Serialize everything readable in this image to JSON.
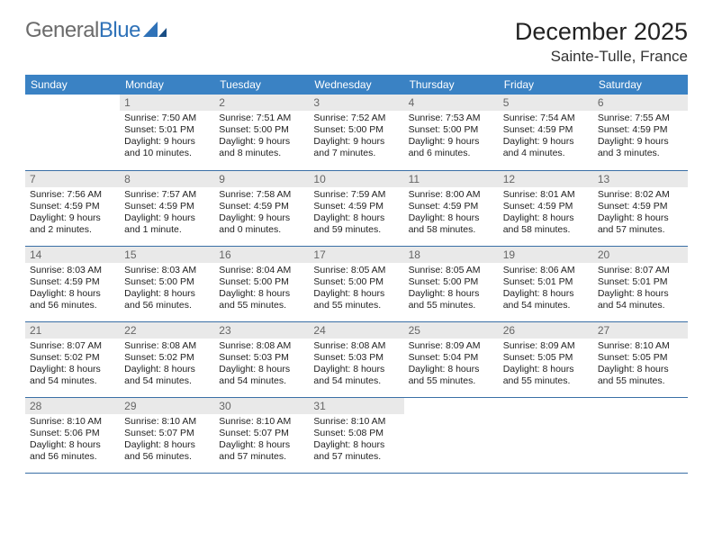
{
  "logo": {
    "text1": "General",
    "text2": "Blue"
  },
  "title": "December 2025",
  "location": "Sainte-Tulle, France",
  "colors": {
    "header_bg": "#3a82c4",
    "header_text": "#ffffff",
    "daynum_bg": "#e9e9e9",
    "daynum_text": "#666666",
    "border": "#3a6fa6",
    "logo_gray": "#6b6b6b",
    "logo_blue": "#2f72b8"
  },
  "weekdays": [
    "Sunday",
    "Monday",
    "Tuesday",
    "Wednesday",
    "Thursday",
    "Friday",
    "Saturday"
  ],
  "start_offset": 1,
  "days": [
    {
      "n": 1,
      "sunrise": "7:50 AM",
      "sunset": "5:01 PM",
      "daylight": "9 hours and 10 minutes."
    },
    {
      "n": 2,
      "sunrise": "7:51 AM",
      "sunset": "5:00 PM",
      "daylight": "9 hours and 8 minutes."
    },
    {
      "n": 3,
      "sunrise": "7:52 AM",
      "sunset": "5:00 PM",
      "daylight": "9 hours and 7 minutes."
    },
    {
      "n": 4,
      "sunrise": "7:53 AM",
      "sunset": "5:00 PM",
      "daylight": "9 hours and 6 minutes."
    },
    {
      "n": 5,
      "sunrise": "7:54 AM",
      "sunset": "4:59 PM",
      "daylight": "9 hours and 4 minutes."
    },
    {
      "n": 6,
      "sunrise": "7:55 AM",
      "sunset": "4:59 PM",
      "daylight": "9 hours and 3 minutes."
    },
    {
      "n": 7,
      "sunrise": "7:56 AM",
      "sunset": "4:59 PM",
      "daylight": "9 hours and 2 minutes."
    },
    {
      "n": 8,
      "sunrise": "7:57 AM",
      "sunset": "4:59 PM",
      "daylight": "9 hours and 1 minute."
    },
    {
      "n": 9,
      "sunrise": "7:58 AM",
      "sunset": "4:59 PM",
      "daylight": "9 hours and 0 minutes."
    },
    {
      "n": 10,
      "sunrise": "7:59 AM",
      "sunset": "4:59 PM",
      "daylight": "8 hours and 59 minutes."
    },
    {
      "n": 11,
      "sunrise": "8:00 AM",
      "sunset": "4:59 PM",
      "daylight": "8 hours and 58 minutes."
    },
    {
      "n": 12,
      "sunrise": "8:01 AM",
      "sunset": "4:59 PM",
      "daylight": "8 hours and 58 minutes."
    },
    {
      "n": 13,
      "sunrise": "8:02 AM",
      "sunset": "4:59 PM",
      "daylight": "8 hours and 57 minutes."
    },
    {
      "n": 14,
      "sunrise": "8:03 AM",
      "sunset": "4:59 PM",
      "daylight": "8 hours and 56 minutes."
    },
    {
      "n": 15,
      "sunrise": "8:03 AM",
      "sunset": "5:00 PM",
      "daylight": "8 hours and 56 minutes."
    },
    {
      "n": 16,
      "sunrise": "8:04 AM",
      "sunset": "5:00 PM",
      "daylight": "8 hours and 55 minutes."
    },
    {
      "n": 17,
      "sunrise": "8:05 AM",
      "sunset": "5:00 PM",
      "daylight": "8 hours and 55 minutes."
    },
    {
      "n": 18,
      "sunrise": "8:05 AM",
      "sunset": "5:00 PM",
      "daylight": "8 hours and 55 minutes."
    },
    {
      "n": 19,
      "sunrise": "8:06 AM",
      "sunset": "5:01 PM",
      "daylight": "8 hours and 54 minutes."
    },
    {
      "n": 20,
      "sunrise": "8:07 AM",
      "sunset": "5:01 PM",
      "daylight": "8 hours and 54 minutes."
    },
    {
      "n": 21,
      "sunrise": "8:07 AM",
      "sunset": "5:02 PM",
      "daylight": "8 hours and 54 minutes."
    },
    {
      "n": 22,
      "sunrise": "8:08 AM",
      "sunset": "5:02 PM",
      "daylight": "8 hours and 54 minutes."
    },
    {
      "n": 23,
      "sunrise": "8:08 AM",
      "sunset": "5:03 PM",
      "daylight": "8 hours and 54 minutes."
    },
    {
      "n": 24,
      "sunrise": "8:08 AM",
      "sunset": "5:03 PM",
      "daylight": "8 hours and 54 minutes."
    },
    {
      "n": 25,
      "sunrise": "8:09 AM",
      "sunset": "5:04 PM",
      "daylight": "8 hours and 55 minutes."
    },
    {
      "n": 26,
      "sunrise": "8:09 AM",
      "sunset": "5:05 PM",
      "daylight": "8 hours and 55 minutes."
    },
    {
      "n": 27,
      "sunrise": "8:10 AM",
      "sunset": "5:05 PM",
      "daylight": "8 hours and 55 minutes."
    },
    {
      "n": 28,
      "sunrise": "8:10 AM",
      "sunset": "5:06 PM",
      "daylight": "8 hours and 56 minutes."
    },
    {
      "n": 29,
      "sunrise": "8:10 AM",
      "sunset": "5:07 PM",
      "daylight": "8 hours and 56 minutes."
    },
    {
      "n": 30,
      "sunrise": "8:10 AM",
      "sunset": "5:07 PM",
      "daylight": "8 hours and 57 minutes."
    },
    {
      "n": 31,
      "sunrise": "8:10 AM",
      "sunset": "5:08 PM",
      "daylight": "8 hours and 57 minutes."
    }
  ],
  "labels": {
    "sunrise": "Sunrise:",
    "sunset": "Sunset:",
    "daylight": "Daylight:"
  }
}
